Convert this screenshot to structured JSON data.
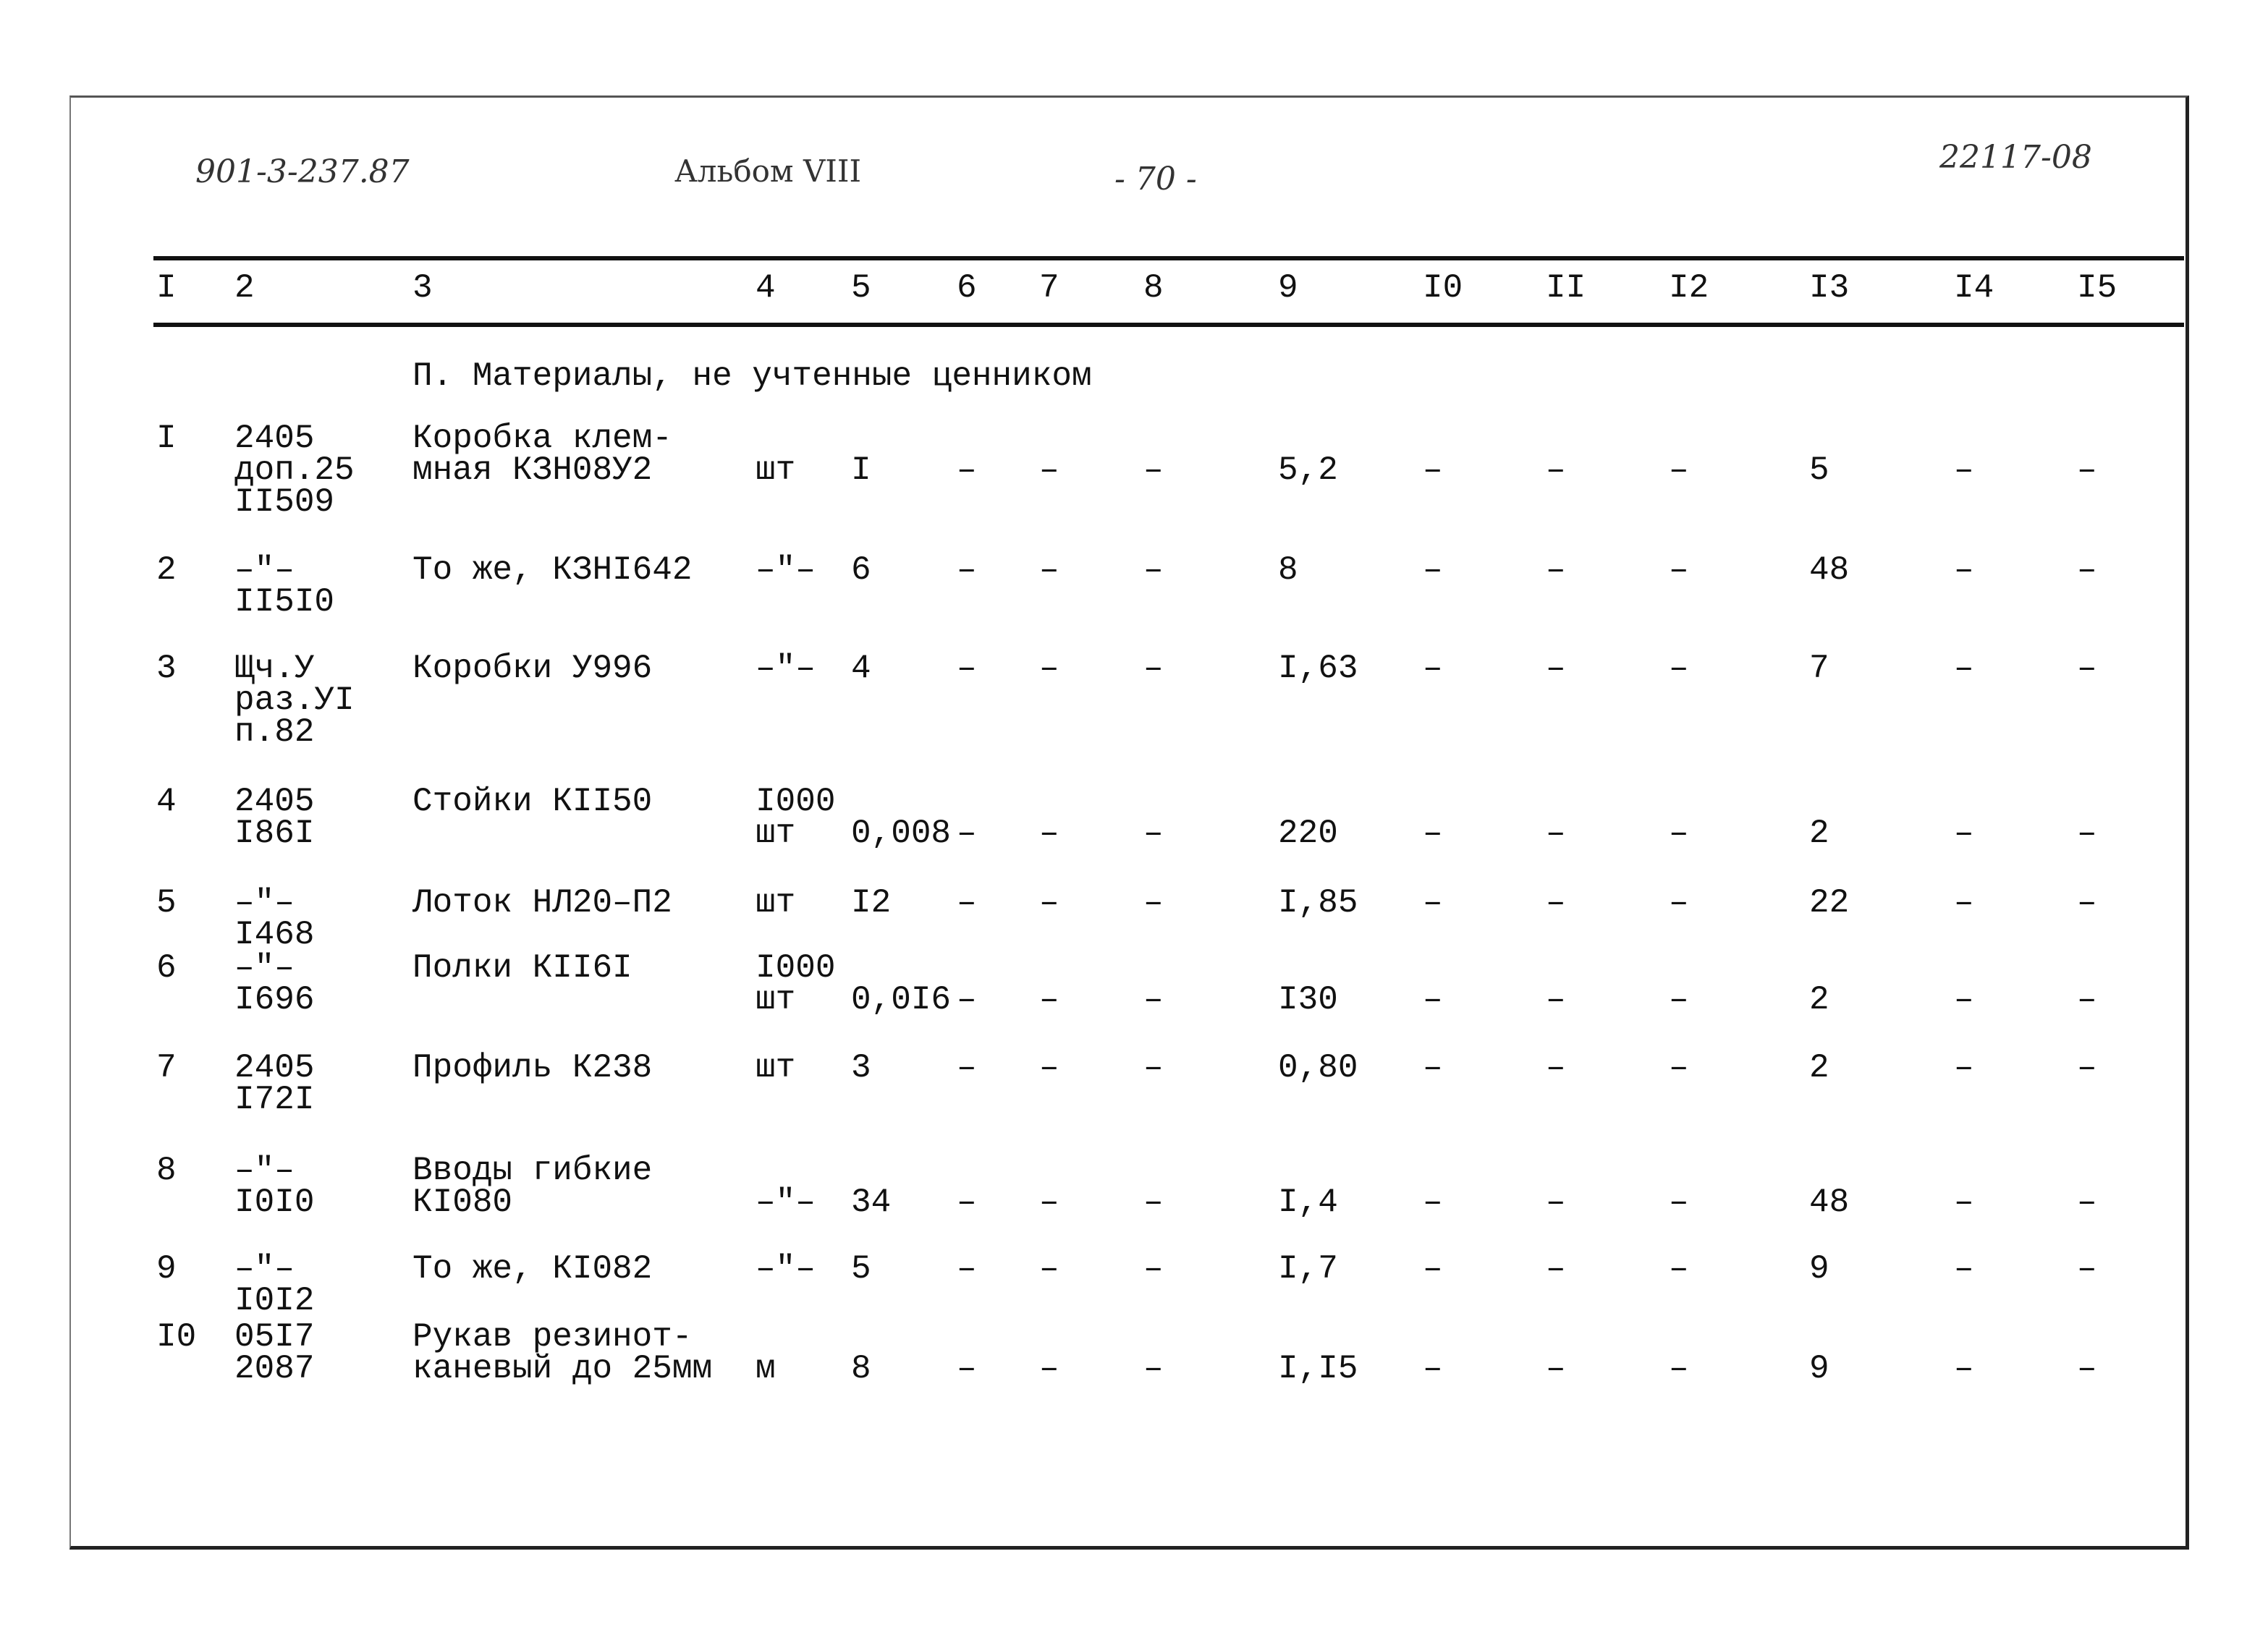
{
  "stamp": {
    "project_code": "901-3-237.87",
    "album": "Альбом VIII",
    "page": "- 70 -",
    "doc_number": "22117-08"
  },
  "columns": [
    "I",
    "2",
    "3",
    "4",
    "5",
    "6",
    "7",
    "8",
    "9",
    "I0",
    "II",
    "I2",
    "I3",
    "I4",
    "I5"
  ],
  "section_title": "П. Материалы, не учтенные ценником",
  "rows": [
    {
      "num": "I",
      "code": [
        "2405",
        "доп.25",
        "II509"
      ],
      "name": [
        "Коробка клем-",
        "мная КЗН08У2"
      ],
      "unit": [
        "шт"
      ],
      "c5": "I",
      "c6": "–",
      "c7": "–",
      "c8": "–",
      "c9": "5,2",
      "c10": "–",
      "c11": "–",
      "c12": "–",
      "c13": "5",
      "c14": "–",
      "c15": "–"
    },
    {
      "num": "2",
      "code": [
        "–\"–",
        "II5I0"
      ],
      "name": [
        "То же, КЗНI642"
      ],
      "unit": [
        "–\"–"
      ],
      "c5": "6",
      "c6": "–",
      "c7": "–",
      "c8": "–",
      "c9": "8",
      "c10": "–",
      "c11": "–",
      "c12": "–",
      "c13": "48",
      "c14": "–",
      "c15": "–"
    },
    {
      "num": "3",
      "code": [
        "Щч.У",
        "раз.УI",
        "п.82"
      ],
      "name": [
        "Коробки У996"
      ],
      "unit": [
        "–\"–"
      ],
      "c5": "4",
      "c6": "–",
      "c7": "–",
      "c8": "–",
      "c9": "I,63",
      "c10": "–",
      "c11": "–",
      "c12": "–",
      "c13": "7",
      "c14": "–",
      "c15": "–"
    },
    {
      "num": "4",
      "code": [
        "2405",
        "I86I"
      ],
      "name": [
        "Стойки КII50"
      ],
      "unit": [
        "I000",
        "шт"
      ],
      "c5": "0,008",
      "c6": "–",
      "c7": "–",
      "c8": "–",
      "c9": "220",
      "c10": "–",
      "c11": "–",
      "c12": "–",
      "c13": "2",
      "c14": "–",
      "c15": "–"
    },
    {
      "num": "5",
      "code": [
        "–\"–",
        "I468"
      ],
      "name": [
        "Лоток НЛ20–П2"
      ],
      "unit": [
        "шт"
      ],
      "c5": "I2",
      "c6": "–",
      "c7": "–",
      "c8": "–",
      "c9": "I,85",
      "c10": "–",
      "c11": "–",
      "c12": "–",
      "c13": "22",
      "c14": "–",
      "c15": "–"
    },
    {
      "num": "6",
      "code": [
        "–\"–",
        "I696"
      ],
      "name": [
        "Полки КII6I"
      ],
      "unit": [
        "I000",
        "шт"
      ],
      "c5": "0,0I6",
      "c6": "–",
      "c7": "–",
      "c8": "–",
      "c9": "I30",
      "c10": "–",
      "c11": "–",
      "c12": "–",
      "c13": "2",
      "c14": "–",
      "c15": "–"
    },
    {
      "num": "7",
      "code": [
        "2405",
        "I72I"
      ],
      "name": [
        "Профиль К238"
      ],
      "unit": [
        "шт"
      ],
      "c5": "3",
      "c6": "–",
      "c7": "–",
      "c8": "–",
      "c9": "0,80",
      "c10": "–",
      "c11": "–",
      "c12": "–",
      "c13": "2",
      "c14": "–",
      "c15": "–"
    },
    {
      "num": "8",
      "code": [
        "–\"–",
        "I0I0"
      ],
      "name": [
        "Вводы гибкие",
        "КI080"
      ],
      "unit": [
        "–\"–"
      ],
      "c5": "34",
      "c6": "–",
      "c7": "–",
      "c8": "–",
      "c9": "I,4",
      "c10": "–",
      "c11": "–",
      "c12": "–",
      "c13": "48",
      "c14": "–",
      "c15": "–"
    },
    {
      "num": "9",
      "code": [
        "–\"–",
        "I0I2"
      ],
      "name": [
        "То же, КI082"
      ],
      "unit": [
        "–\"–"
      ],
      "c5": "5",
      "c6": "–",
      "c7": "–",
      "c8": "–",
      "c9": "I,7",
      "c10": "–",
      "c11": "–",
      "c12": "–",
      "c13": "9",
      "c14": "–",
      "c15": "–"
    },
    {
      "num": "I0",
      "code": [
        "05I7",
        "2087"
      ],
      "name": [
        "Рукав резинот-",
        "каневый до 25мм"
      ],
      "unit": [
        "м"
      ],
      "c5": "8",
      "c6": "–",
      "c7": "–",
      "c8": "–",
      "c9": "I,I5",
      "c10": "–",
      "c11": "–",
      "c12": "–",
      "c13": "9",
      "c14": "–",
      "c15": "–"
    }
  ]
}
